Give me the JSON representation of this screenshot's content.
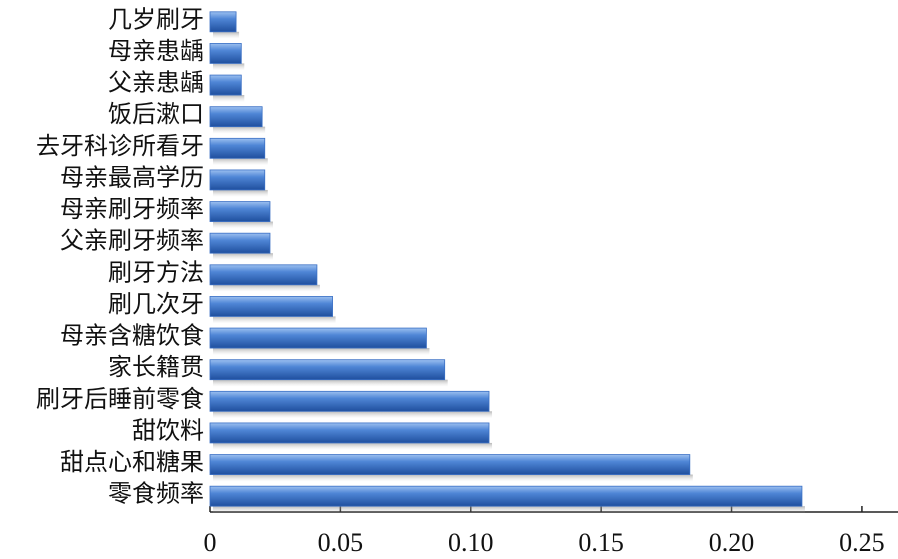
{
  "chart_data": {
    "type": "barh",
    "categories": [
      "几岁刷牙",
      "母亲患龋",
      "父亲患龋",
      "饭后漱口",
      "去牙科诊所看牙",
      "母亲最高学历",
      "母亲刷牙频率",
      "父亲刷牙频率",
      "刷牙方法",
      "刷几次牙",
      "母亲含糖饮食",
      "家长籍贯",
      "刷牙后睡前零食",
      "甜饮料",
      "甜点心和糖果",
      "零食频率"
    ],
    "values": [
      0.01,
      0.012,
      0.012,
      0.02,
      0.021,
      0.021,
      0.023,
      0.023,
      0.041,
      0.047,
      0.083,
      0.09,
      0.107,
      0.107,
      0.184,
      0.227
    ],
    "color": "#3a6fc4",
    "xlim": [
      0,
      0.26
    ],
    "xticks": [
      0,
      0.05,
      {
        "value": 0.1,
        "label": "0.10"
      },
      0.15,
      {
        "value": 0.2,
        "label": "0.20"
      },
      0.25
    ]
  }
}
